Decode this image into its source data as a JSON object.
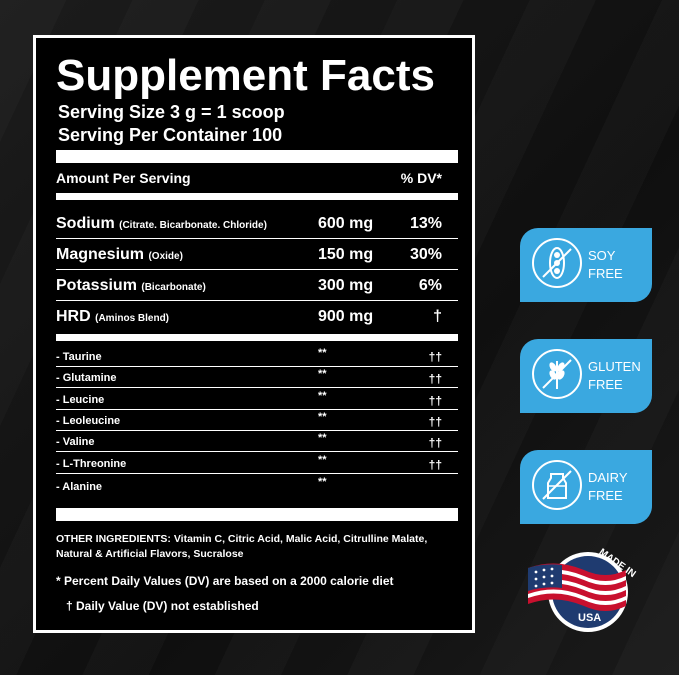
{
  "title": "Supplement Facts",
  "serving_size": "Serving Size 3 g = 1 scoop",
  "serving_per_container": "Serving Per Container 100",
  "header": {
    "amount": "Amount Per Serving",
    "dv": "% DV*"
  },
  "main_nutrients": [
    {
      "name": "Sodium",
      "source": "(Citrate. Bicarbonate. Chloride)",
      "amount": "600 mg",
      "dv": "13%"
    },
    {
      "name": "Magnesium",
      "source": "(Oxide)",
      "amount": "150 mg",
      "dv": "30%"
    },
    {
      "name": "Potassium",
      "source": "(Bicarbonate)",
      "amount": "300 mg",
      "dv": "6%"
    },
    {
      "name": "HRD",
      "source": "(Aminos Blend)",
      "amount": "900 mg",
      "dv": "†"
    }
  ],
  "blend": [
    {
      "name": "- Taurine",
      "amount": "**",
      "dv": "††"
    },
    {
      "name": "- Glutamine",
      "amount": "**",
      "dv": "††"
    },
    {
      "name": "- Leucine",
      "amount": "**",
      "dv": "††"
    },
    {
      "name": "- Leoleucine",
      "amount": "**",
      "dv": "††"
    },
    {
      "name": "- Valine",
      "amount": "**",
      "dv": "††"
    },
    {
      "name": "- L-Threonine",
      "amount": "**",
      "dv": "††"
    },
    {
      "name": "- Alanine",
      "amount": "**",
      "dv": ""
    }
  ],
  "other_ingredients": "OTHER INGREDIENTS: Vitamin C, Citric Acid, Malic Acid, Citrulline Malate, Natural & Artificial Flavors, Sucralose",
  "note_dv": "* Percent Daily Values (DV) are based on a 2000 calorie diet",
  "note_not_established": "† Daily Value (DV) not established",
  "badges": [
    {
      "line1": "SOY",
      "line2": "FREE",
      "icon": "soy-icon"
    },
    {
      "line1": "GLUTEN",
      "line2": "FREE",
      "icon": "wheat-icon"
    },
    {
      "line1": "DAIRY",
      "line2": "FREE",
      "icon": "milk-icon"
    }
  ],
  "made_in": {
    "top": "MADE IN",
    "bottom": "USA"
  },
  "colors": {
    "badge": "#3aa8e0",
    "background": "#141414",
    "panel": "#000000",
    "text": "#ffffff"
  }
}
